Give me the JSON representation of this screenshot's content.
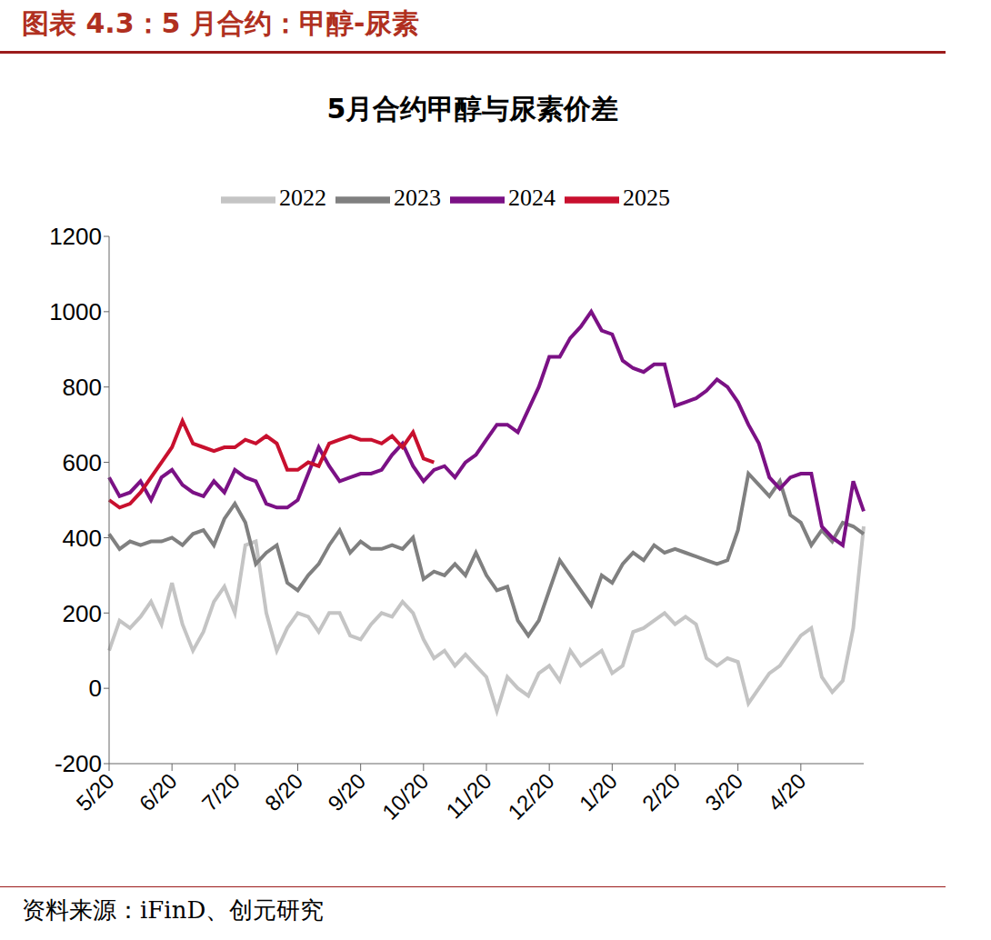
{
  "header": {
    "title": "图表 4.3：5 月合约：甲醇-尿素"
  },
  "footer": {
    "source": "资料来源：iFinD、创元研究"
  },
  "chart_data": {
    "type": "line",
    "title": "5月合约甲醇与尿素价差",
    "legend": "top",
    "categories": [
      "5/20",
      null,
      null,
      null,
      null,
      null,
      "6/20",
      null,
      null,
      null,
      null,
      null,
      "7/20",
      null,
      null,
      null,
      null,
      null,
      "8/20",
      null,
      null,
      null,
      null,
      null,
      "9/20",
      null,
      null,
      null,
      null,
      null,
      "10/20",
      null,
      null,
      null,
      null,
      null,
      "11/20",
      null,
      null,
      null,
      null,
      null,
      "12/20",
      null,
      null,
      null,
      null,
      null,
      "1/20",
      null,
      null,
      null,
      null,
      null,
      "2/20",
      null,
      null,
      null,
      null,
      null,
      "3/20",
      null,
      null,
      null,
      null,
      null,
      "4/20",
      null,
      null,
      null,
      null,
      null,
      null
    ],
    "ylim": [
      -200,
      1200
    ],
    "yticks": [
      -200,
      0,
      200,
      400,
      600,
      800,
      1000,
      1200
    ],
    "series": [
      {
        "name": "2022",
        "color": "#c4c4c4",
        "values": [
          100,
          180,
          160,
          190,
          230,
          170,
          280,
          170,
          100,
          150,
          230,
          270,
          200,
          380,
          390,
          200,
          100,
          160,
          200,
          190,
          150,
          200,
          200,
          140,
          130,
          170,
          200,
          190,
          230,
          200,
          130,
          80,
          100,
          60,
          90,
          60,
          30,
          -60,
          30,
          0,
          -20,
          40,
          60,
          20,
          100,
          60,
          80,
          100,
          40,
          60,
          150,
          160,
          180,
          200,
          170,
          190,
          170,
          80,
          60,
          80,
          70,
          -40,
          0,
          40,
          60,
          100,
          140,
          160,
          30,
          -10,
          20,
          160,
          430
        ]
      },
      {
        "name": "2023",
        "color": "#808080",
        "values": [
          410,
          370,
          390,
          380,
          390,
          390,
          400,
          380,
          410,
          420,
          380,
          450,
          490,
          440,
          330,
          360,
          380,
          280,
          260,
          300,
          330,
          380,
          420,
          360,
          390,
          370,
          370,
          380,
          370,
          400,
          290,
          310,
          300,
          330,
          300,
          360,
          300,
          260,
          270,
          180,
          140,
          180,
          260,
          340,
          300,
          260,
          220,
          300,
          280,
          330,
          360,
          340,
          380,
          360,
          370,
          360,
          350,
          340,
          330,
          340,
          420,
          570,
          540,
          510,
          550,
          460,
          440,
          380,
          420,
          390,
          440,
          430,
          410
        ]
      },
      {
        "name": "2024",
        "color": "#7b1185",
        "values": [
          560,
          510,
          520,
          550,
          500,
          560,
          580,
          540,
          520,
          510,
          550,
          520,
          580,
          560,
          550,
          490,
          480,
          480,
          500,
          570,
          640,
          590,
          550,
          560,
          570,
          570,
          580,
          620,
          650,
          590,
          550,
          580,
          590,
          560,
          600,
          620,
          660,
          700,
          700,
          680,
          740,
          800,
          880,
          880,
          930,
          960,
          1000,
          950,
          940,
          870,
          850,
          840,
          860,
          860,
          750,
          760,
          770,
          790,
          820,
          800,
          760,
          700,
          650,
          560,
          530,
          560,
          570,
          570,
          430,
          400,
          380,
          550,
          470
        ]
      },
      {
        "name": "2025",
        "color": "#c8102e",
        "values": [
          500,
          480,
          490,
          520,
          560,
          600,
          640,
          710,
          650,
          640,
          630,
          640,
          640,
          660,
          650,
          670,
          650,
          580,
          580,
          600,
          590,
          650,
          660,
          670,
          660,
          660,
          650,
          670,
          640,
          680,
          610,
          600,
          null,
          null,
          null,
          null,
          null,
          null,
          null,
          null,
          null,
          null,
          null,
          null,
          null,
          null,
          null,
          null,
          null,
          null,
          null,
          null,
          null,
          null,
          null,
          null,
          null,
          null,
          null,
          null,
          null,
          null,
          null,
          null,
          null,
          null,
          null,
          null,
          null,
          null,
          null,
          null,
          null
        ]
      }
    ]
  }
}
